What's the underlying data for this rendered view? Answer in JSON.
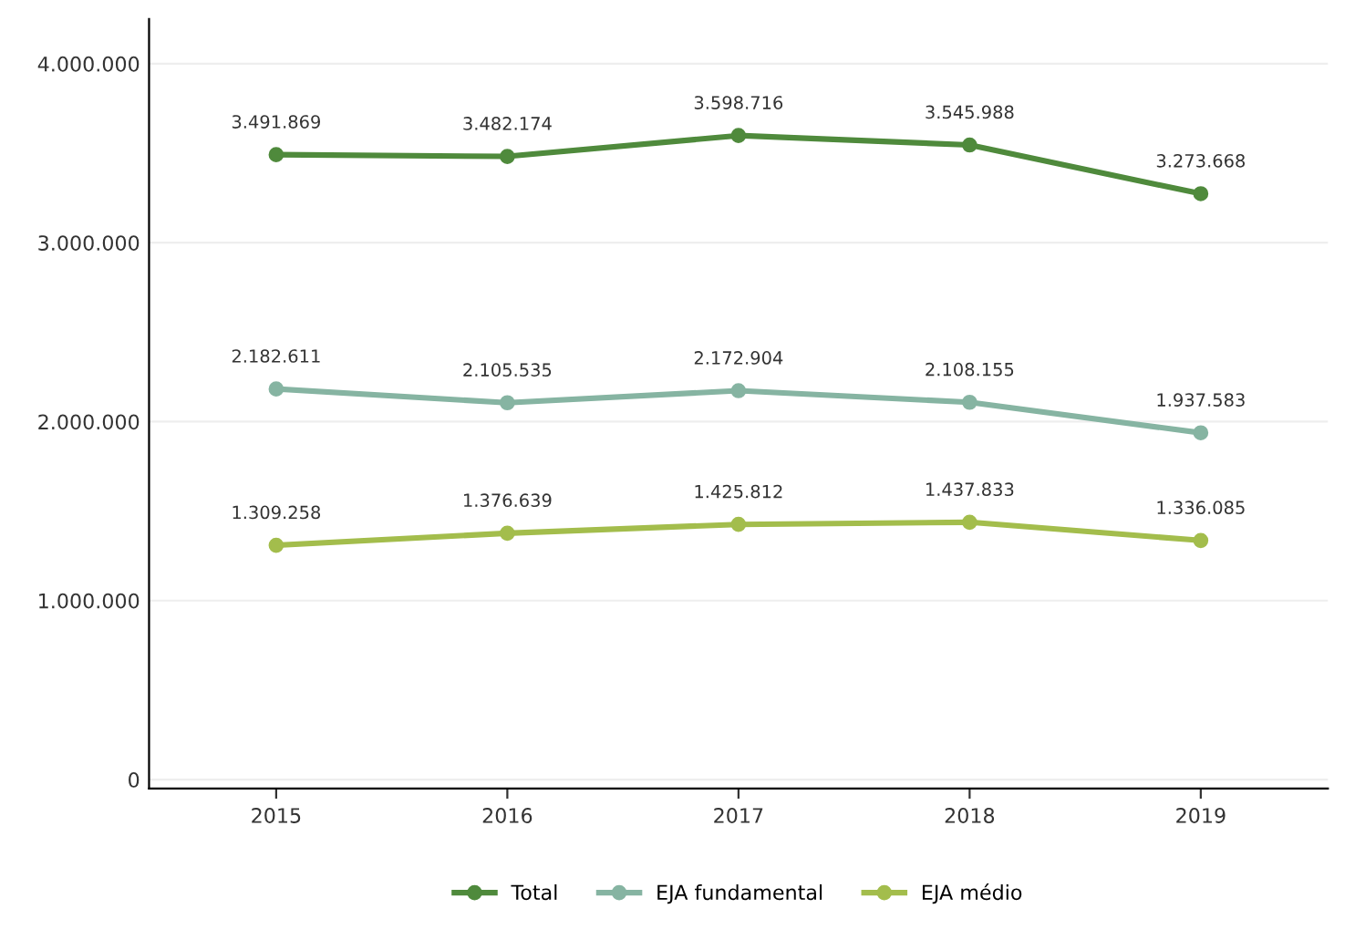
{
  "chart_data": {
    "type": "line",
    "categories": [
      "2015",
      "2016",
      "2017",
      "2018",
      "2019"
    ],
    "series": [
      {
        "name": "Total",
        "color": "#4f8a3c",
        "values": [
          3491869,
          3482174,
          3598716,
          3545988,
          3273668
        ],
        "value_labels": [
          "3.491.869",
          "3.482.174",
          "3.598.716",
          "3.545.988",
          "3.273.668"
        ]
      },
      {
        "name": "EJA fundamental",
        "color": "#86b4a2",
        "values": [
          2182611,
          2105535,
          2172904,
          2108155,
          1937583
        ],
        "value_labels": [
          "2.182.611",
          "2.105.535",
          "2.172.904",
          "2.108.155",
          "1.937.583"
        ]
      },
      {
        "name": "EJA médio",
        "color": "#a3bd4c",
        "values": [
          1309258,
          1376639,
          1425812,
          1437833,
          1336085
        ],
        "value_labels": [
          "1.309.258",
          "1.376.639",
          "1.425.812",
          "1.437.833",
          "1.336.085"
        ]
      }
    ],
    "ylim": [
      -50000,
      4250000
    ],
    "yticks": [
      {
        "value": 0,
        "label": "0"
      },
      {
        "value": 1000000,
        "label": "1.000.000"
      },
      {
        "value": 2000000,
        "label": "2.000.000"
      },
      {
        "value": 3000000,
        "label": "3.000.000"
      },
      {
        "value": 4000000,
        "label": "4.000.000"
      }
    ],
    "grid": "y",
    "legend": "bottom",
    "marker": "circle",
    "line_style": "solid"
  }
}
